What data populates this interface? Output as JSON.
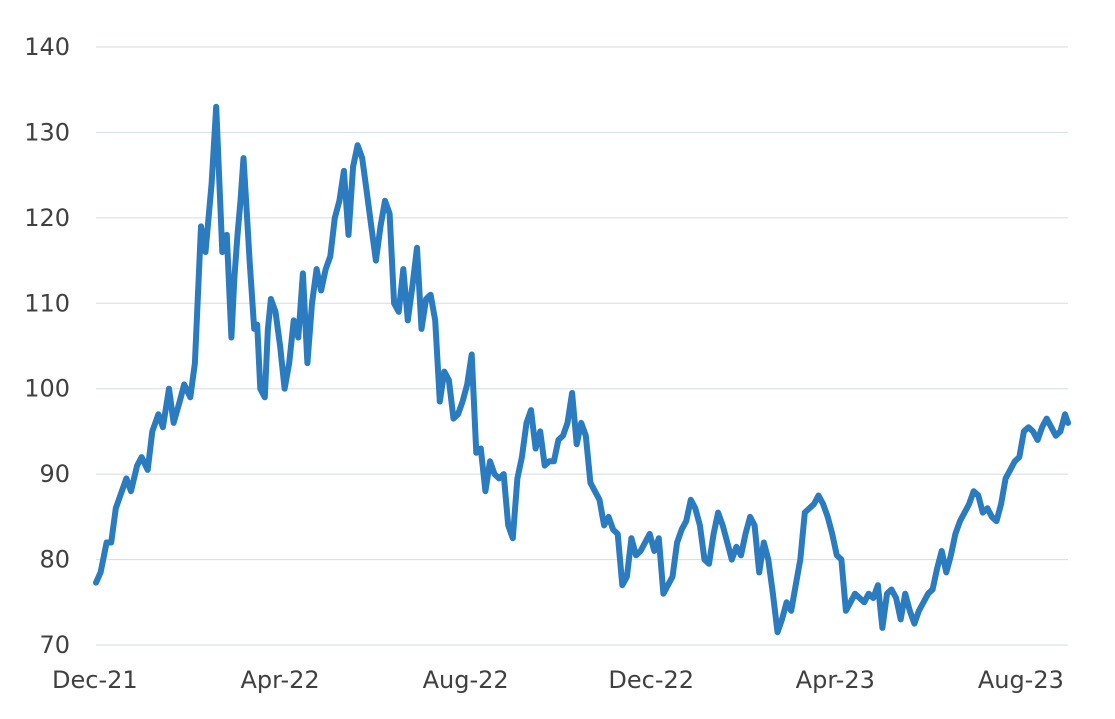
{
  "chart_data": {
    "type": "line",
    "title": "",
    "xlabel": "",
    "ylabel": "",
    "grid": true,
    "legend": "none",
    "ylim": [
      70,
      140
    ],
    "yticks": [
      70,
      80,
      90,
      100,
      110,
      120,
      130,
      140
    ],
    "ytick_labels": [
      "70",
      "80",
      "90",
      "100",
      "110",
      "120",
      "130",
      "140"
    ],
    "xlim": [
      "2021-12-01",
      "2023-09-01"
    ],
    "xticks": [
      "2021-12-01",
      "2022-04-01",
      "2022-08-01",
      "2022-12-01",
      "2023-04-01",
      "2023-08-01"
    ],
    "xtick_labels": [
      "Dec-21",
      "Apr-22",
      "Aug-22",
      "Dec-22",
      "Apr-23",
      "Aug-23"
    ],
    "line_color": "#2a7bbf",
    "series": [
      {
        "x": [
          "2021-12-01",
          "2021-12-04",
          "2021-12-08",
          "2021-12-11",
          "2021-12-14",
          "2021-12-17",
          "2021-12-21",
          "2021-12-24",
          "2021-12-28",
          "2021-12-31",
          "2022-01-04",
          "2022-01-07",
          "2022-01-11",
          "2022-01-14",
          "2022-01-18",
          "2022-01-21",
          "2022-01-25",
          "2022-01-28",
          "2022-02-01",
          "2022-02-04",
          "2022-02-08",
          "2022-02-11",
          "2022-02-15",
          "2022-02-18",
          "2022-02-22",
          "2022-02-25",
          "2022-02-28",
          "2022-03-02",
          "2022-03-04",
          "2022-03-06",
          "2022-03-08",
          "2022-03-10",
          "2022-03-12",
          "2022-03-15",
          "2022-03-17",
          "2022-03-19",
          "2022-03-22",
          "2022-03-24",
          "2022-03-26",
          "2022-03-29",
          "2022-04-01",
          "2022-04-04",
          "2022-04-07",
          "2022-04-10",
          "2022-04-13",
          "2022-04-16",
          "2022-04-19",
          "2022-04-22",
          "2022-04-25",
          "2022-04-28",
          "2022-05-01",
          "2022-05-04",
          "2022-05-07",
          "2022-05-10",
          "2022-05-13",
          "2022-05-16",
          "2022-05-19",
          "2022-05-22",
          "2022-05-25",
          "2022-05-28",
          "2022-05-31",
          "2022-06-03",
          "2022-06-06",
          "2022-06-09",
          "2022-06-12",
          "2022-06-15",
          "2022-06-18",
          "2022-06-21",
          "2022-06-24",
          "2022-06-27",
          "2022-06-30",
          "2022-07-03",
          "2022-07-06",
          "2022-07-09",
          "2022-07-12",
          "2022-07-15",
          "2022-07-18",
          "2022-07-21",
          "2022-07-24",
          "2022-07-27",
          "2022-07-30",
          "2022-08-02",
          "2022-08-05",
          "2022-08-08",
          "2022-08-11",
          "2022-08-14",
          "2022-08-17",
          "2022-08-20",
          "2022-08-23",
          "2022-08-26",
          "2022-08-29",
          "2022-09-01",
          "2022-09-04",
          "2022-09-07",
          "2022-09-10",
          "2022-09-13",
          "2022-09-16",
          "2022-09-19",
          "2022-09-22",
          "2022-09-25",
          "2022-09-28",
          "2022-10-01",
          "2022-10-04",
          "2022-10-07",
          "2022-10-10",
          "2022-10-13",
          "2022-10-16",
          "2022-10-19",
          "2022-10-22",
          "2022-10-25",
          "2022-10-28",
          "2022-10-31",
          "2022-11-03",
          "2022-11-06",
          "2022-11-09",
          "2022-11-12",
          "2022-11-15",
          "2022-11-18",
          "2022-11-21",
          "2022-11-24",
          "2022-11-27",
          "2022-11-30",
          "2022-12-03",
          "2022-12-06",
          "2022-12-09",
          "2022-12-12",
          "2022-12-15",
          "2022-12-18",
          "2022-12-21",
          "2022-12-24",
          "2022-12-27",
          "2022-12-30",
          "2023-01-02",
          "2023-01-05",
          "2023-01-08",
          "2023-01-11",
          "2023-01-14",
          "2023-01-17",
          "2023-01-20",
          "2023-01-23",
          "2023-01-26",
          "2023-01-29",
          "2023-02-01",
          "2023-02-04",
          "2023-02-07",
          "2023-02-10",
          "2023-02-13",
          "2023-02-16",
          "2023-02-19",
          "2023-02-22",
          "2023-02-25",
          "2023-02-28",
          "2023-03-03",
          "2023-03-06",
          "2023-03-09",
          "2023-03-12",
          "2023-03-15",
          "2023-03-18",
          "2023-03-21",
          "2023-03-24",
          "2023-03-27",
          "2023-03-30",
          "2023-04-02",
          "2023-04-05",
          "2023-04-08",
          "2023-04-11",
          "2023-04-14",
          "2023-04-17",
          "2023-04-20",
          "2023-04-23",
          "2023-04-26",
          "2023-04-29",
          "2023-05-02",
          "2023-05-05",
          "2023-05-08",
          "2023-05-11",
          "2023-05-14",
          "2023-05-17",
          "2023-05-20",
          "2023-05-23",
          "2023-05-26",
          "2023-05-29",
          "2023-06-01",
          "2023-06-04",
          "2023-06-07",
          "2023-06-10",
          "2023-06-13",
          "2023-06-16",
          "2023-06-19",
          "2023-06-22",
          "2023-06-25",
          "2023-06-28",
          "2023-07-01",
          "2023-07-04",
          "2023-07-07",
          "2023-07-10",
          "2023-07-13",
          "2023-07-16",
          "2023-07-19",
          "2023-07-22",
          "2023-07-25",
          "2023-07-28",
          "2023-07-31",
          "2023-08-03",
          "2023-08-06",
          "2023-08-09",
          "2023-08-12",
          "2023-08-15",
          "2023-08-18",
          "2023-08-21",
          "2023-08-24",
          "2023-08-27",
          "2023-08-30",
          "2023-09-01"
        ],
        "y": [
          77.3,
          78.5,
          82.0,
          82.0,
          86.0,
          87.5,
          89.5,
          88.0,
          91.0,
          92.0,
          90.5,
          95.0,
          97.0,
          95.5,
          100.0,
          96.0,
          98.5,
          100.5,
          99.0,
          103.0,
          119.0,
          116.0,
          124.0,
          133.0,
          116.0,
          118.0,
          106.0,
          113.0,
          118.0,
          122.0,
          127.0,
          121.0,
          115.0,
          107.0,
          107.5,
          100.0,
          99.0,
          107.0,
          110.5,
          109.0,
          105.0,
          100.0,
          103.0,
          108.0,
          106.0,
          113.5,
          103.0,
          110.0,
          114.0,
          111.5,
          114.0,
          115.5,
          120.0,
          122.0,
          125.5,
          118.0,
          126.0,
          128.5,
          127.0,
          123.0,
          119.0,
          115.0,
          119.0,
          122.0,
          120.5,
          110.0,
          109.0,
          114.0,
          108.0,
          112.0,
          116.5,
          107.0,
          110.5,
          111.0,
          108.0,
          98.5,
          102.0,
          101.0,
          96.5,
          97.0,
          98.5,
          100.5,
          104.0,
          92.5,
          93.0,
          88.0,
          91.5,
          90.0,
          89.5,
          90.0,
          84.0,
          82.5,
          89.5,
          92.0,
          96.0,
          97.5,
          93.0,
          95.0,
          91.0,
          91.5,
          91.5,
          94.0,
          94.5,
          96.0,
          99.5,
          93.5,
          96.0,
          94.5,
          89.0,
          88.0,
          87.0,
          84.0,
          85.0,
          83.5,
          83.0,
          77.0,
          78.0,
          82.5,
          80.5,
          81.0,
          82.0,
          83.0,
          81.0,
          82.5,
          76.0,
          77.0,
          78.0,
          82.0,
          83.5,
          84.5,
          87.0,
          86.0,
          84.0,
          80.0,
          79.5,
          83.0,
          85.5,
          84.0,
          82.0,
          80.0,
          81.5,
          80.5,
          83.0,
          85.0,
          84.0,
          78.5,
          82.0,
          80.0,
          76.0,
          71.5,
          73.0,
          75.0,
          74.0,
          77.0,
          80.0,
          85.5,
          86.0,
          86.5,
          87.5,
          86.5,
          85.0,
          83.0,
          80.5,
          80.0,
          74.0,
          75.0,
          76.0,
          75.5,
          75.0,
          76.0,
          75.5,
          77.0,
          72.0,
          76.0,
          76.5,
          75.5,
          73.0,
          76.0,
          74.0,
          72.5,
          74.0,
          75.0,
          76.0,
          76.5,
          79.0,
          81.0,
          78.5,
          80.5,
          83.0,
          84.5,
          85.5,
          86.5,
          88.0,
          87.5,
          85.5,
          86.0,
          85.0,
          84.5,
          86.5,
          89.5,
          90.5,
          91.5,
          92.0,
          95.0,
          95.5,
          95.0,
          94.0,
          95.5,
          96.5,
          95.5,
          94.5,
          95.0,
          97.0,
          96.0
        ]
      }
    ]
  }
}
